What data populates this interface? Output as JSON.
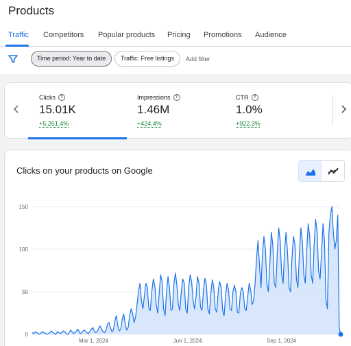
{
  "page": {
    "title": "Products"
  },
  "tabs": [
    {
      "label": "Traffic",
      "active": true
    },
    {
      "label": "Competitors"
    },
    {
      "label": "Popular products"
    },
    {
      "label": "Pricing"
    },
    {
      "label": "Promotions"
    },
    {
      "label": "Audience"
    }
  ],
  "filters": {
    "icon": "filter-icon",
    "chips": [
      {
        "label": "Time period: Year to date",
        "selected": true
      },
      {
        "label": "Traffic: Free listings",
        "selected": false
      }
    ],
    "add_filter": "Add filter"
  },
  "metrics": [
    {
      "label": "Clicks",
      "value": "15.01K",
      "delta": "+5,261.4%",
      "selected": true
    },
    {
      "label": "Impressions",
      "value": "1.46M",
      "delta": "+424.4%"
    },
    {
      "label": "CTR",
      "value": "1.0%",
      "delta": "+922.3%"
    }
  ],
  "chart_card": {
    "title": "Clicks on your products on Google",
    "toggle_icons": [
      "area-chart-icon",
      "line-chart-icon"
    ]
  },
  "colors": {
    "accent": "#1a73e8",
    "positive": "#188038",
    "area_fill": "#d2e3fc"
  },
  "chart_data": {
    "type": "area",
    "title": "",
    "xlabel": "",
    "ylabel": "",
    "ylim": [
      0,
      150
    ],
    "yticks": [
      0,
      50,
      100,
      150
    ],
    "xticks": [
      "Mar 1, 2024",
      "Jun 1, 2024",
      "Sep 1, 2024"
    ],
    "x_start": "2024-01-01",
    "x_end": "2024-10-29",
    "series": [
      {
        "values": [
          2,
          1,
          3,
          2,
          1,
          0,
          2,
          3,
          2,
          1,
          0,
          1,
          2,
          4,
          2,
          1,
          0,
          3,
          2,
          1,
          2,
          4,
          3,
          1,
          0,
          2,
          5,
          3,
          1,
          2,
          4,
          6,
          2,
          1,
          3,
          5,
          4,
          2,
          1,
          3,
          6,
          8,
          4,
          2,
          3,
          7,
          10,
          6,
          3,
          2,
          5,
          12,
          14,
          8,
          3,
          5,
          16,
          22,
          10,
          4,
          6,
          18,
          24,
          12,
          5,
          8,
          22,
          30,
          25,
          14,
          20,
          35,
          50,
          60,
          40,
          30,
          45,
          60,
          55,
          30,
          28,
          50,
          65,
          58,
          35,
          25,
          48,
          70,
          62,
          30,
          22,
          50,
          68,
          55,
          28,
          30,
          60,
          72,
          58,
          35,
          28,
          50,
          65,
          60,
          30,
          25,
          55,
          70,
          62,
          40,
          30,
          45,
          68,
          60,
          32,
          28,
          52,
          66,
          58,
          30,
          24,
          48,
          64,
          56,
          30,
          26,
          50,
          62,
          55,
          28,
          22,
          46,
          60,
          52,
          30,
          28,
          50,
          58,
          50,
          26,
          25,
          48,
          55,
          50,
          30,
          28,
          45,
          60,
          52,
          35,
          40,
          60,
          90,
          110,
          80,
          55,
          95,
          115,
          100,
          60,
          50,
          85,
          120,
          105,
          60,
          55,
          95,
          125,
          110,
          70,
          60,
          100,
          120,
          95,
          55,
          50,
          90,
          115,
          105,
          65,
          55,
          95,
          125,
          110,
          70,
          60,
          100,
          130,
          115,
          70,
          60,
          105,
          135,
          120,
          75,
          65,
          95,
          130,
          110,
          40,
          30,
          120,
          140,
          150,
          120,
          100,
          110,
          140,
          8,
          0
        ]
      }
    ]
  }
}
